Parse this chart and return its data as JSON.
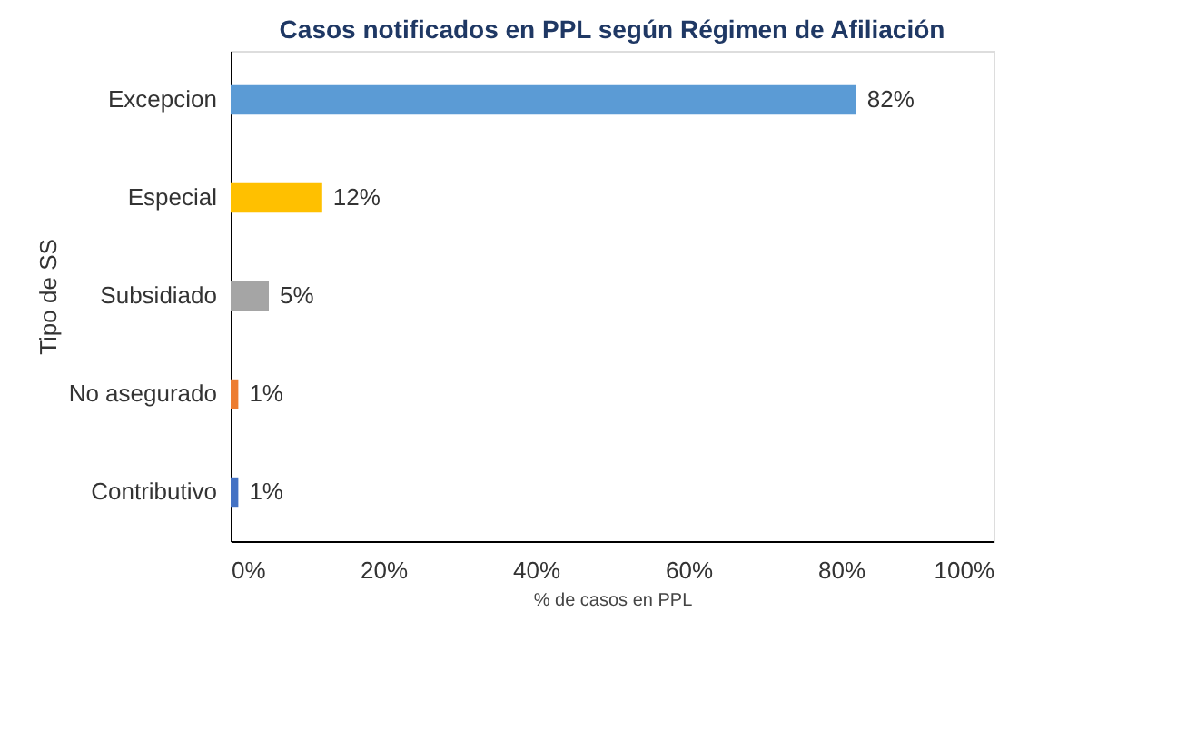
{
  "chart_data": {
    "type": "bar",
    "orientation": "horizontal",
    "title": "Casos notificados en PPL según Régimen de Afiliación",
    "xlabel": "% de casos en PPL",
    "ylabel": "Tipo de SS",
    "categories": [
      "Excepcion",
      "Especial",
      "Subsidiado",
      "No asegurado",
      "Contributivo"
    ],
    "values": [
      82,
      12,
      5,
      1,
      1
    ],
    "colors": [
      "#5b9bd5",
      "#ffc000",
      "#a5a5a5",
      "#ed7d31",
      "#4472c4"
    ],
    "value_labels": [
      "82%",
      "12%",
      "5%",
      "1%",
      "1%"
    ],
    "xlim": [
      0,
      100
    ],
    "xticks": [
      {
        "value": 0,
        "label": "0%"
      },
      {
        "value": 20,
        "label": "20%"
      },
      {
        "value": 40,
        "label": "40%"
      },
      {
        "value": 60,
        "label": "60%"
      },
      {
        "value": 80,
        "label": "80%"
      },
      {
        "value": 100,
        "label": "100%"
      }
    ],
    "grid": false
  }
}
